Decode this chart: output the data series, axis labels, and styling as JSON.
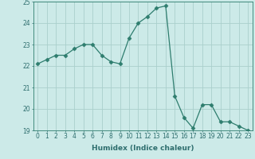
{
  "x": [
    0,
    1,
    2,
    3,
    4,
    5,
    6,
    7,
    8,
    9,
    10,
    11,
    12,
    13,
    14,
    15,
    16,
    17,
    18,
    19,
    20,
    21,
    22,
    23
  ],
  "y": [
    22.1,
    22.3,
    22.5,
    22.5,
    22.8,
    23.0,
    23.0,
    22.5,
    22.2,
    22.1,
    23.3,
    24.0,
    24.3,
    24.7,
    24.8,
    20.6,
    19.6,
    19.1,
    20.2,
    20.2,
    19.4,
    19.4,
    19.2,
    19.0
  ],
  "line_color": "#2e7d6e",
  "marker": "D",
  "marker_size": 2.5,
  "bg_color": "#cceae8",
  "grid_color": "#aacfcc",
  "xlabel": "Humidex (Indice chaleur)",
  "xlim": [
    -0.5,
    23.5
  ],
  "ylim": [
    19,
    25
  ],
  "yticks": [
    19,
    20,
    21,
    22,
    23,
    24,
    25
  ],
  "xticks": [
    0,
    1,
    2,
    3,
    4,
    5,
    6,
    7,
    8,
    9,
    10,
    11,
    12,
    13,
    14,
    15,
    16,
    17,
    18,
    19,
    20,
    21,
    22,
    23
  ],
  "tick_color": "#2e6e6e",
  "axis_color": "#2e7d6e",
  "label_fontsize": 6.5,
  "tick_fontsize": 5.5
}
